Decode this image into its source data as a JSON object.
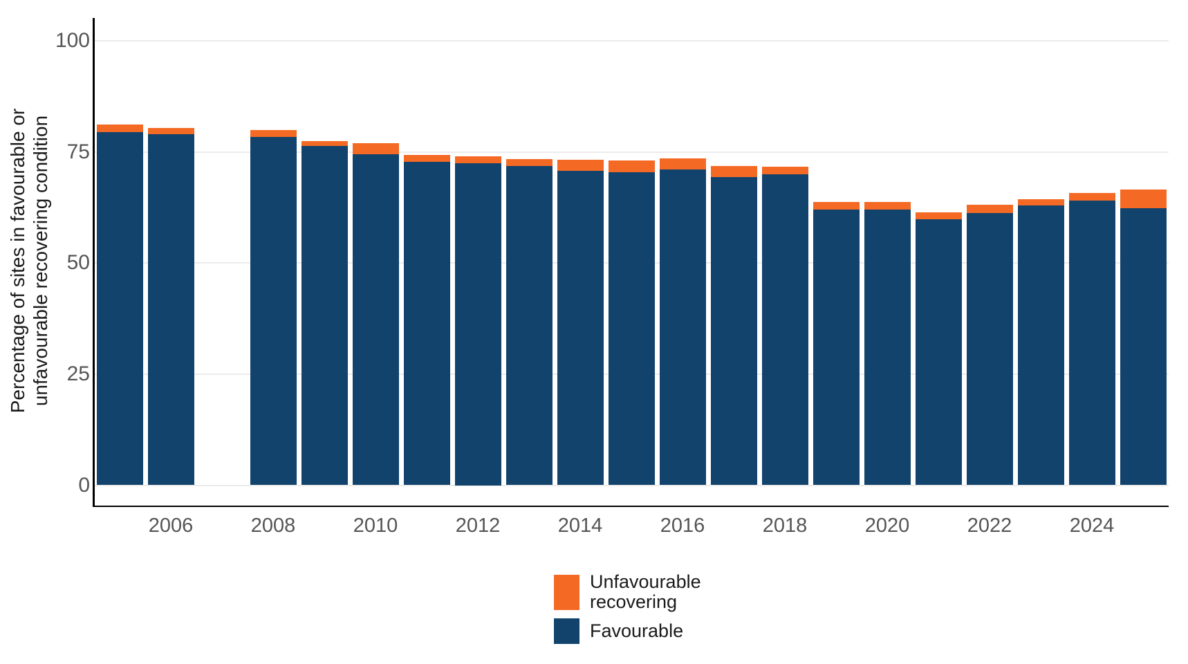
{
  "figure": {
    "background": "#ffffff",
    "axis_text_color": "#555555",
    "title_text_color": "#1a1a1a",
    "gridline_color": "#ebebeb",
    "axis_line_color": "#000000"
  },
  "legend": {
    "items": [
      {
        "label": "Unfavourable\nrecovering",
        "color": "#F46A25"
      },
      {
        "label": "Favourable",
        "color": "#12436D"
      }
    ]
  },
  "chart_data": {
    "type": "bar",
    "stacked": true,
    "title": "",
    "xlabel": "",
    "ylabel": "Percentage of sites in favourable or\nunfavourable recovering condition",
    "ylim": [
      0,
      100
    ],
    "grid": "horizontal",
    "legend_position": "bottom",
    "x": [
      2005,
      2006,
      2007,
      2008,
      2009,
      2010,
      2011,
      2012,
      2013,
      2014,
      2015,
      2016,
      2017,
      2018,
      2019,
      2020,
      2021,
      2022,
      2023,
      2024,
      2025
    ],
    "x_note": "no bar for 2007 (null values)",
    "x_ticks": [
      2006,
      2008,
      2010,
      2012,
      2014,
      2016,
      2018,
      2020,
      2022,
      2024
    ],
    "y_ticks": [
      0,
      25,
      50,
      75,
      100
    ],
    "series": [
      {
        "name": "Favourable",
        "color": "#12436D",
        "values": [
          79.4,
          79.0,
          null,
          78.3,
          76.4,
          74.4,
          72.8,
          72.5,
          71.9,
          70.8,
          70.5,
          71.0,
          69.4,
          69.9,
          62.1,
          62.1,
          59.9,
          61.3,
          62.9,
          64.0,
          62.4
        ]
      },
      {
        "name": "Unfavourable recovering",
        "color": "#F46A25",
        "values": [
          1.8,
          1.4,
          null,
          1.7,
          1.1,
          2.6,
          1.5,
          1.5,
          1.5,
          2.5,
          2.5,
          2.6,
          2.4,
          1.8,
          1.7,
          1.7,
          1.5,
          1.8,
          1.5,
          1.8,
          4.1
        ]
      }
    ]
  }
}
